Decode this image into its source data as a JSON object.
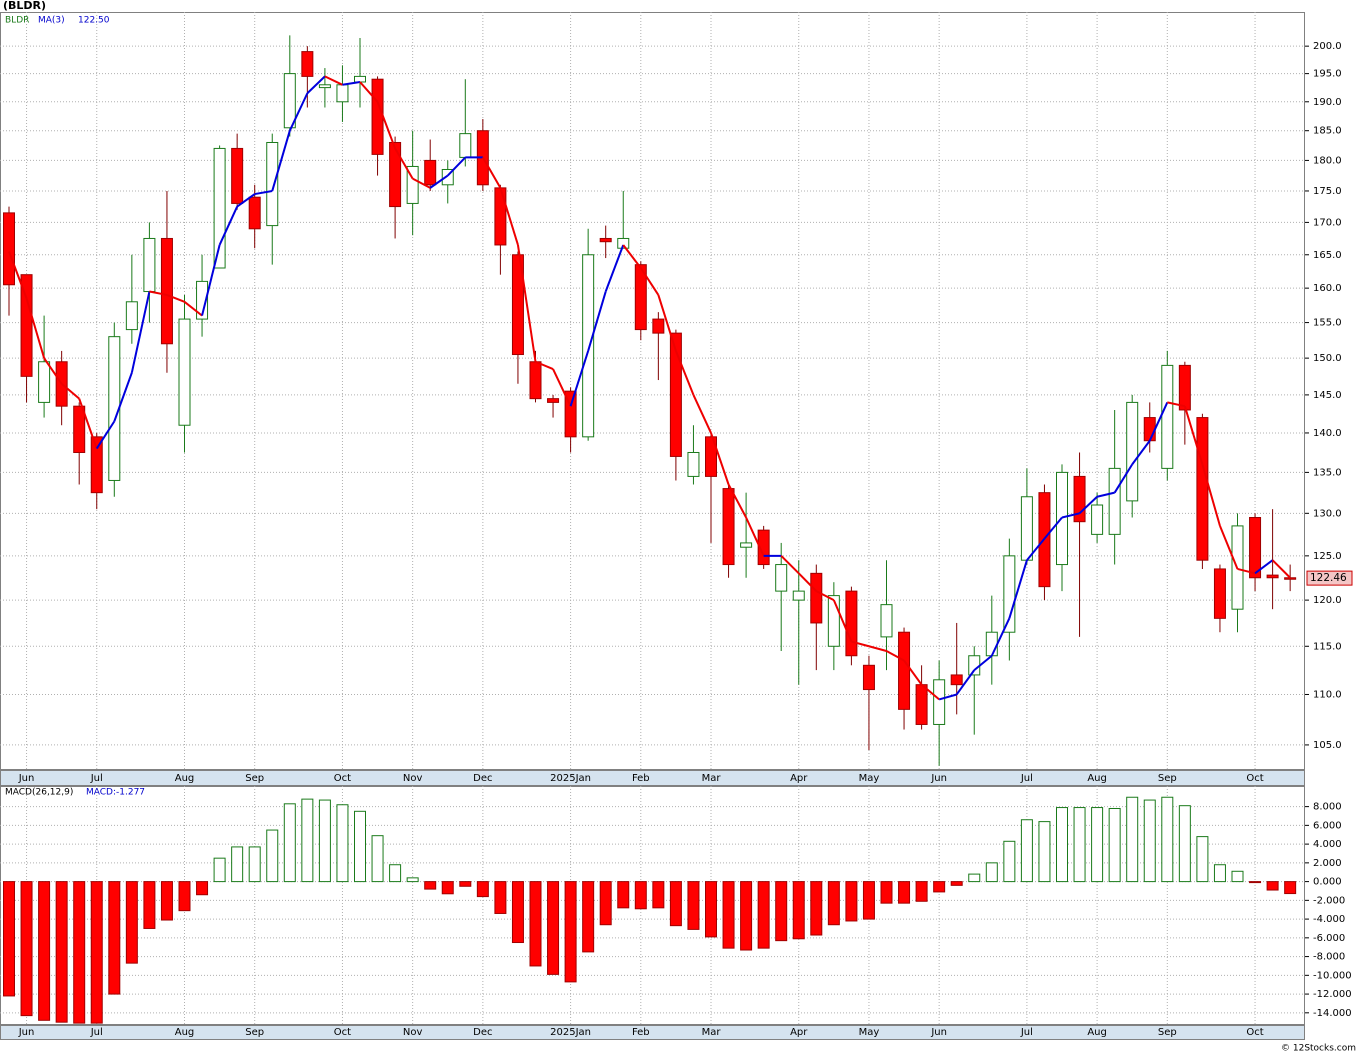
{
  "chart_data": [
    {
      "type": "candlestick",
      "title": "(BLDR)",
      "categories": [
        null,
        "Jun",
        null,
        null,
        null,
        "Jul",
        null,
        null,
        null,
        null,
        "Aug",
        null,
        null,
        null,
        "Sep",
        null,
        null,
        null,
        null,
        "Oct",
        null,
        null,
        null,
        "Nov",
        null,
        null,
        null,
        "Dec",
        null,
        null,
        null,
        null,
        "2025Jan",
        null,
        null,
        null,
        "Feb",
        null,
        null,
        null,
        "Mar",
        null,
        null,
        null,
        null,
        "Apr",
        null,
        null,
        null,
        "May",
        null,
        null,
        null,
        "Jun",
        null,
        null,
        null,
        null,
        "Jul",
        null,
        null,
        null,
        "Aug",
        null,
        null,
        null,
        "Sep",
        null,
        null,
        null,
        null,
        "Oct",
        null,
        null
      ],
      "series": [
        {
          "name": "BLDR",
          "up_color": "#1a7a1a",
          "down_color": "#ff0000",
          "open": [
            171.5,
            162,
            144,
            149.5,
            143.5,
            139.5,
            134,
            154,
            159.5,
            167.5,
            141,
            155.5,
            163,
            182,
            174,
            169.5,
            185.5,
            199,
            192.5,
            190,
            193.5,
            194,
            183,
            173,
            180,
            176,
            180.5,
            185,
            175.5,
            165,
            149.5,
            144.5,
            145.5,
            139.5,
            167.5,
            166,
            163.5,
            155.5,
            153.5,
            134.5,
            139.5,
            133,
            126,
            128,
            121,
            120,
            123,
            115,
            121,
            113,
            116,
            116.5,
            111,
            107,
            112,
            112,
            114,
            116.5,
            124.5,
            132.5,
            124,
            134.5,
            127.5,
            127.5,
            131.5,
            142,
            135.5,
            149,
            142,
            123.5,
            119,
            129.5,
            122.8,
            122.5
          ],
          "high": [
            172.5,
            162,
            156,
            151,
            144,
            140,
            155,
            165,
            170,
            175,
            159,
            165,
            182.5,
            184.5,
            176,
            184.5,
            202,
            200,
            196,
            196.5,
            201.5,
            194.5,
            184,
            185,
            183.5,
            180,
            194,
            187,
            176,
            165.5,
            151,
            145,
            146,
            169,
            169.5,
            175,
            164,
            156.5,
            154,
            141,
            140,
            133.5,
            132.5,
            128.5,
            126.5,
            124.5,
            124,
            122,
            121.5,
            114,
            124.5,
            117,
            113,
            113.5,
            117.5,
            115,
            120.5,
            127,
            135.5,
            133.5,
            136,
            137.5,
            132.5,
            143,
            145,
            144,
            151,
            149.5,
            142.5,
            124,
            130,
            130,
            130.5,
            124
          ],
          "low": [
            156,
            144,
            142,
            141,
            133.5,
            130.5,
            132,
            152,
            155,
            148,
            137.5,
            153,
            163,
            172,
            166,
            163.5,
            184,
            189,
            189,
            186.5,
            189,
            177.5,
            167.5,
            168,
            175,
            173,
            179,
            175,
            162,
            146.5,
            144,
            142,
            137.5,
            139,
            164.5,
            166,
            152.5,
            147,
            134,
            133.5,
            126.5,
            122.5,
            122.5,
            123.5,
            114.5,
            111,
            112.5,
            112.5,
            113,
            104.5,
            112.5,
            106.5,
            106.5,
            103,
            108,
            106,
            111,
            113.5,
            124,
            120,
            121,
            116,
            126.5,
            124,
            129.5,
            137.5,
            134,
            138.5,
            123.5,
            116.5,
            116.5,
            121,
            119,
            121
          ],
          "close": [
            160.5,
            147.5,
            149.5,
            143.5,
            137.5,
            132.5,
            153,
            158,
            167.5,
            152,
            155.5,
            161,
            182,
            173,
            169,
            183,
            195,
            194.5,
            193,
            193,
            194.5,
            181,
            172.5,
            179,
            176,
            178.5,
            184.5,
            176,
            166.5,
            150.5,
            144.5,
            144,
            139.5,
            165,
            167,
            167.5,
            154,
            153.5,
            137,
            137.5,
            134.5,
            124,
            126.5,
            124,
            124,
            121,
            117.5,
            120.5,
            114,
            110.5,
            119.5,
            108.5,
            107,
            111.5,
            111,
            114,
            116.5,
            125,
            132,
            121.5,
            135,
            129,
            131,
            135.5,
            144,
            139,
            149,
            143,
            124.5,
            118,
            128.5,
            122.5,
            122.5,
            122.46
          ]
        },
        {
          "name": "MA(3)",
          "value_label": "122.50",
          "up_color": "#0000dd",
          "down_color": "#ee0000",
          "values": [
            165.5,
            158.5,
            150,
            146.5,
            144.5,
            138,
            141.5,
            148,
            159.5,
            159,
            158,
            156,
            166.5,
            172.5,
            174.5,
            175,
            185,
            191.5,
            194.5,
            193,
            193.5,
            190,
            182,
            177,
            175.5,
            177.5,
            180.5,
            180.5,
            175.5,
            166.5,
            149.5,
            148.5,
            143.5,
            151,
            159.5,
            166.5,
            163,
            159,
            151,
            145,
            140,
            133.5,
            129.5,
            125,
            125,
            123,
            121,
            120,
            115.5,
            115,
            114.5,
            113.5,
            111,
            109.5,
            110,
            112.5,
            114,
            118,
            124.5,
            127,
            129.5,
            130,
            132,
            132.5,
            136,
            139,
            144,
            143.5,
            136,
            128.5,
            123.5,
            123,
            124.5,
            122.5
          ]
        }
      ],
      "log_scale": true,
      "grid": true,
      "ylim": [
        102.6,
        206.4
      ],
      "yticks": [
        {
          "value": 105,
          "label": "105.0"
        },
        {
          "value": 110,
          "label": "110.0"
        },
        {
          "value": 115,
          "label": "115.0"
        },
        {
          "value": 120,
          "label": "120.0"
        },
        {
          "value": 125,
          "label": "125.0"
        },
        {
          "value": 130,
          "label": "130.0"
        },
        {
          "value": 135,
          "label": "135.0"
        },
        {
          "value": 140,
          "label": "140.0"
        },
        {
          "value": 145,
          "label": "145.0"
        },
        {
          "value": 150,
          "label": "150.0"
        },
        {
          "value": 155,
          "label": "155.0"
        },
        {
          "value": 160,
          "label": "160.0"
        },
        {
          "value": 165,
          "label": "165.0"
        },
        {
          "value": 170,
          "label": "170.0"
        },
        {
          "value": 175,
          "label": "175.0"
        },
        {
          "value": 180,
          "label": "180.0"
        },
        {
          "value": 185,
          "label": "185.0"
        },
        {
          "value": 190,
          "label": "190.0"
        },
        {
          "value": 195,
          "label": "195.0"
        },
        {
          "value": 200,
          "label": "200.0"
        }
      ]
    },
    {
      "type": "histogram-bar",
      "title": "MACD(26,12,9)",
      "series": [
        {
          "name": "MACD:-1.277",
          "up_color": "#1a7a1a",
          "down_color": "#ff0000",
          "values": [
            -12.2,
            -14.3,
            -14.8,
            -15.0,
            -15.1,
            -15.1,
            -12.0,
            -8.7,
            -5.0,
            -4.1,
            -3.1,
            -1.4,
            2.5,
            3.7,
            3.7,
            5.5,
            8.3,
            8.8,
            8.7,
            8.2,
            7.5,
            4.9,
            1.8,
            0.4,
            -0.8,
            -1.3,
            -0.5,
            -1.6,
            -3.4,
            -6.5,
            -9.0,
            -9.9,
            -10.7,
            -7.5,
            -4.6,
            -2.8,
            -2.9,
            -2.8,
            -4.7,
            -5.1,
            -5.9,
            -7.1,
            -7.3,
            -7.1,
            -6.3,
            -6.1,
            -5.7,
            -4.6,
            -4.2,
            -4.0,
            -2.3,
            -2.3,
            -2.1,
            -1.1,
            -0.4,
            0.8,
            2.0,
            4.3,
            6.6,
            6.4,
            7.9,
            7.9,
            7.9,
            7.8,
            9.0,
            8.7,
            9.0,
            8.1,
            4.8,
            1.8,
            1.1,
            -0.1,
            -0.9,
            -1.277
          ]
        }
      ],
      "grid": true,
      "ylim": [
        -15.3,
        10.2
      ],
      "yticks": [
        {
          "value": 8,
          "label": "8.000"
        },
        {
          "value": 6,
          "label": "6.000"
        },
        {
          "value": 4,
          "label": "4.000"
        },
        {
          "value": 2,
          "label": "2.000"
        },
        {
          "value": 0,
          "label": "0.000"
        },
        {
          "value": -2,
          "label": "-2.000"
        },
        {
          "value": -4,
          "label": "-4.000"
        },
        {
          "value": -6,
          "label": "-6.000"
        },
        {
          "value": -8,
          "label": "-8.000"
        },
        {
          "value": -10,
          "label": "-10.000"
        },
        {
          "value": -12,
          "label": "-12.000"
        },
        {
          "value": -14,
          "label": "-14.000"
        }
      ]
    }
  ],
  "footer": "© 12Stocks.com"
}
